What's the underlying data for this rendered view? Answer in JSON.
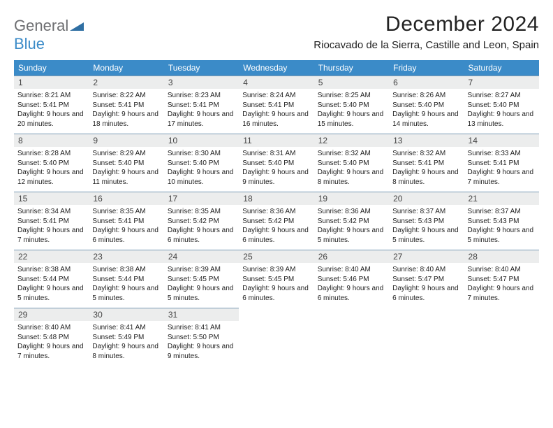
{
  "logo": {
    "word1": "General",
    "word2": "Blue",
    "text_color1": "#6d6e71",
    "text_color2": "#3b8bc8",
    "icon_color": "#2f6fa3"
  },
  "title": "December 2024",
  "location": "Riocavado de la Sierra, Castille and Leon, Spain",
  "colors": {
    "header_bg": "#3b8bc8",
    "header_text": "#ffffff",
    "date_row_bg": "#eceded",
    "date_row_border": "#7a9bb5",
    "body_text": "#222222",
    "page_bg": "#ffffff"
  },
  "typography": {
    "title_fontsize": 30,
    "location_fontsize": 15,
    "dow_fontsize": 12,
    "date_fontsize": 12,
    "body_fontsize": 10
  },
  "days_of_week": [
    "Sunday",
    "Monday",
    "Tuesday",
    "Wednesday",
    "Thursday",
    "Friday",
    "Saturday"
  ],
  "weeks": [
    [
      {
        "date": "1",
        "sunrise": "Sunrise: 8:21 AM",
        "sunset": "Sunset: 5:41 PM",
        "daylight": "Daylight: 9 hours and 20 minutes."
      },
      {
        "date": "2",
        "sunrise": "Sunrise: 8:22 AM",
        "sunset": "Sunset: 5:41 PM",
        "daylight": "Daylight: 9 hours and 18 minutes."
      },
      {
        "date": "3",
        "sunrise": "Sunrise: 8:23 AM",
        "sunset": "Sunset: 5:41 PM",
        "daylight": "Daylight: 9 hours and 17 minutes."
      },
      {
        "date": "4",
        "sunrise": "Sunrise: 8:24 AM",
        "sunset": "Sunset: 5:41 PM",
        "daylight": "Daylight: 9 hours and 16 minutes."
      },
      {
        "date": "5",
        "sunrise": "Sunrise: 8:25 AM",
        "sunset": "Sunset: 5:40 PM",
        "daylight": "Daylight: 9 hours and 15 minutes."
      },
      {
        "date": "6",
        "sunrise": "Sunrise: 8:26 AM",
        "sunset": "Sunset: 5:40 PM",
        "daylight": "Daylight: 9 hours and 14 minutes."
      },
      {
        "date": "7",
        "sunrise": "Sunrise: 8:27 AM",
        "sunset": "Sunset: 5:40 PM",
        "daylight": "Daylight: 9 hours and 13 minutes."
      }
    ],
    [
      {
        "date": "8",
        "sunrise": "Sunrise: 8:28 AM",
        "sunset": "Sunset: 5:40 PM",
        "daylight": "Daylight: 9 hours and 12 minutes."
      },
      {
        "date": "9",
        "sunrise": "Sunrise: 8:29 AM",
        "sunset": "Sunset: 5:40 PM",
        "daylight": "Daylight: 9 hours and 11 minutes."
      },
      {
        "date": "10",
        "sunrise": "Sunrise: 8:30 AM",
        "sunset": "Sunset: 5:40 PM",
        "daylight": "Daylight: 9 hours and 10 minutes."
      },
      {
        "date": "11",
        "sunrise": "Sunrise: 8:31 AM",
        "sunset": "Sunset: 5:40 PM",
        "daylight": "Daylight: 9 hours and 9 minutes."
      },
      {
        "date": "12",
        "sunrise": "Sunrise: 8:32 AM",
        "sunset": "Sunset: 5:40 PM",
        "daylight": "Daylight: 9 hours and 8 minutes."
      },
      {
        "date": "13",
        "sunrise": "Sunrise: 8:32 AM",
        "sunset": "Sunset: 5:41 PM",
        "daylight": "Daylight: 9 hours and 8 minutes."
      },
      {
        "date": "14",
        "sunrise": "Sunrise: 8:33 AM",
        "sunset": "Sunset: 5:41 PM",
        "daylight": "Daylight: 9 hours and 7 minutes."
      }
    ],
    [
      {
        "date": "15",
        "sunrise": "Sunrise: 8:34 AM",
        "sunset": "Sunset: 5:41 PM",
        "daylight": "Daylight: 9 hours and 7 minutes."
      },
      {
        "date": "16",
        "sunrise": "Sunrise: 8:35 AM",
        "sunset": "Sunset: 5:41 PM",
        "daylight": "Daylight: 9 hours and 6 minutes."
      },
      {
        "date": "17",
        "sunrise": "Sunrise: 8:35 AM",
        "sunset": "Sunset: 5:42 PM",
        "daylight": "Daylight: 9 hours and 6 minutes."
      },
      {
        "date": "18",
        "sunrise": "Sunrise: 8:36 AM",
        "sunset": "Sunset: 5:42 PM",
        "daylight": "Daylight: 9 hours and 6 minutes."
      },
      {
        "date": "19",
        "sunrise": "Sunrise: 8:36 AM",
        "sunset": "Sunset: 5:42 PM",
        "daylight": "Daylight: 9 hours and 5 minutes."
      },
      {
        "date": "20",
        "sunrise": "Sunrise: 8:37 AM",
        "sunset": "Sunset: 5:43 PM",
        "daylight": "Daylight: 9 hours and 5 minutes."
      },
      {
        "date": "21",
        "sunrise": "Sunrise: 8:37 AM",
        "sunset": "Sunset: 5:43 PM",
        "daylight": "Daylight: 9 hours and 5 minutes."
      }
    ],
    [
      {
        "date": "22",
        "sunrise": "Sunrise: 8:38 AM",
        "sunset": "Sunset: 5:44 PM",
        "daylight": "Daylight: 9 hours and 5 minutes."
      },
      {
        "date": "23",
        "sunrise": "Sunrise: 8:38 AM",
        "sunset": "Sunset: 5:44 PM",
        "daylight": "Daylight: 9 hours and 5 minutes."
      },
      {
        "date": "24",
        "sunrise": "Sunrise: 8:39 AM",
        "sunset": "Sunset: 5:45 PM",
        "daylight": "Daylight: 9 hours and 5 minutes."
      },
      {
        "date": "25",
        "sunrise": "Sunrise: 8:39 AM",
        "sunset": "Sunset: 5:45 PM",
        "daylight": "Daylight: 9 hours and 6 minutes."
      },
      {
        "date": "26",
        "sunrise": "Sunrise: 8:40 AM",
        "sunset": "Sunset: 5:46 PM",
        "daylight": "Daylight: 9 hours and 6 minutes."
      },
      {
        "date": "27",
        "sunrise": "Sunrise: 8:40 AM",
        "sunset": "Sunset: 5:47 PM",
        "daylight": "Daylight: 9 hours and 6 minutes."
      },
      {
        "date": "28",
        "sunrise": "Sunrise: 8:40 AM",
        "sunset": "Sunset: 5:47 PM",
        "daylight": "Daylight: 9 hours and 7 minutes."
      }
    ],
    [
      {
        "date": "29",
        "sunrise": "Sunrise: 8:40 AM",
        "sunset": "Sunset: 5:48 PM",
        "daylight": "Daylight: 9 hours and 7 minutes."
      },
      {
        "date": "30",
        "sunrise": "Sunrise: 8:41 AM",
        "sunset": "Sunset: 5:49 PM",
        "daylight": "Daylight: 9 hours and 8 minutes."
      },
      {
        "date": "31",
        "sunrise": "Sunrise: 8:41 AM",
        "sunset": "Sunset: 5:50 PM",
        "daylight": "Daylight: 9 hours and 9 minutes."
      },
      null,
      null,
      null,
      null
    ]
  ]
}
